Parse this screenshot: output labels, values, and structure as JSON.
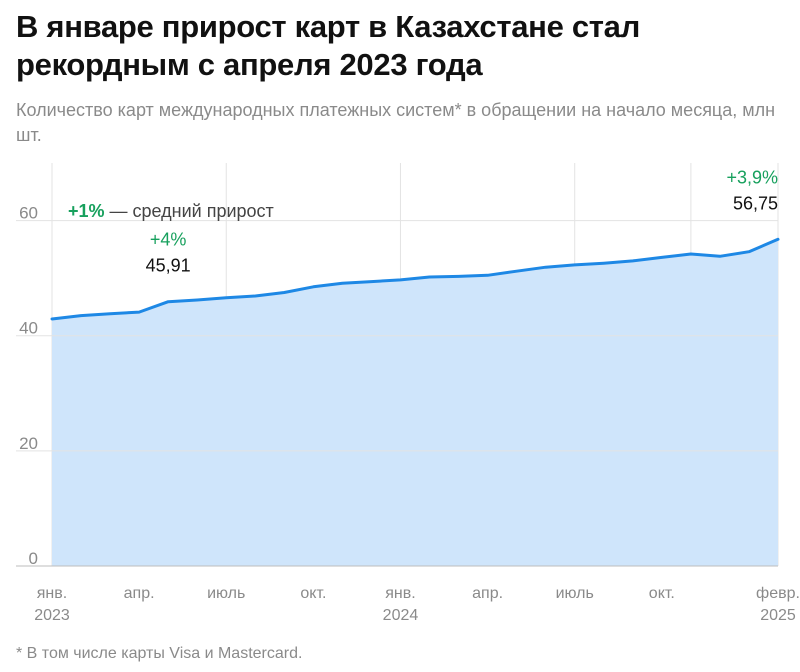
{
  "title": "В январе прирост карт в Казахстане стал рекордным с апреля 2023 года",
  "subtitle": "Количество карт международных платежных систем* в обращении на начало месяца, млн шт.",
  "footnote": "* В том числе карты Visa и Mastercard.",
  "colors": {
    "line": "#1e88e5",
    "area": "#cfe5fb",
    "green": "#17a05d",
    "grid": "#e3e3e3",
    "axis_text": "#8a8a8a"
  },
  "chart_data": {
    "type": "area",
    "ylim": [
      0,
      70
    ],
    "yticks": [
      0,
      20,
      40,
      60
    ],
    "x": [
      "янв. 2023",
      "фев. 2023",
      "мар. 2023",
      "апр. 2023",
      "май 2023",
      "июнь 2023",
      "июль 2023",
      "авг. 2023",
      "сен. 2023",
      "окт. 2023",
      "нояб. 2023",
      "дек. 2023",
      "янв. 2024",
      "фев. 2024",
      "мар. 2024",
      "апр. 2024",
      "май 2024",
      "июнь 2024",
      "июль 2024",
      "авг. 2024",
      "сен. 2024",
      "окт. 2024",
      "нояб. 2024",
      "дек. 2024",
      "янв. 2025",
      "фев. 2025"
    ],
    "values": [
      42.9,
      43.5,
      43.8,
      44.1,
      45.91,
      46.2,
      46.6,
      46.9,
      47.5,
      48.5,
      49.1,
      49.4,
      49.7,
      50.2,
      50.3,
      50.5,
      51.2,
      51.9,
      52.3,
      52.6,
      53.0,
      53.6,
      54.2,
      53.8,
      54.6,
      56.75
    ],
    "xtick_labels": [
      {
        "index": 0,
        "line1": "янв.",
        "line2": "2023"
      },
      {
        "index": 3,
        "line1": "апр.",
        "line2": ""
      },
      {
        "index": 6,
        "line1": "июль",
        "line2": ""
      },
      {
        "index": 9,
        "line1": "окт.",
        "line2": ""
      },
      {
        "index": 12,
        "line1": "янв.",
        "line2": "2024"
      },
      {
        "index": 15,
        "line1": "апр.",
        "line2": ""
      },
      {
        "index": 18,
        "line1": "июль",
        "line2": ""
      },
      {
        "index": 21,
        "line1": "окт.",
        "line2": ""
      },
      {
        "index": 25,
        "line1": "февр.",
        "line2": "2025"
      }
    ],
    "vertical_gridlines_at": [
      0,
      6,
      12,
      18,
      22,
      25
    ],
    "annotations": [
      {
        "index": 4,
        "change": "+4%",
        "value": "45,91"
      },
      {
        "index": 25,
        "change": "+3,9%",
        "value": "56,75"
      }
    ],
    "legend_note": {
      "change": "+1%",
      "text": " — средний прирост"
    }
  }
}
